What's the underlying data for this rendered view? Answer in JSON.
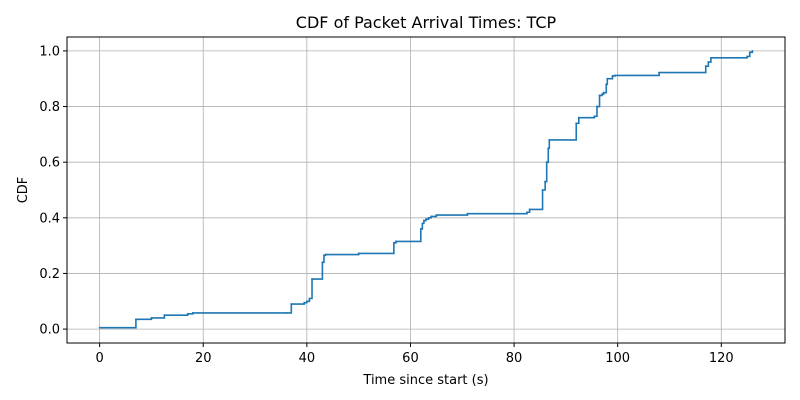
{
  "chart_data": {
    "type": "line",
    "title": "CDF of Packet Arrival Times: TCP",
    "xlabel": "Time since start (s)",
    "ylabel": "CDF",
    "xlim": [
      -6.3,
      132.3
    ],
    "ylim": [
      -0.05,
      1.05
    ],
    "xticks": [
      0,
      20,
      40,
      60,
      80,
      100,
      120
    ],
    "yticks": [
      0.0,
      0.2,
      0.4,
      0.6,
      0.8,
      1.0
    ],
    "xtick_labels": [
      "0",
      "20",
      "40",
      "60",
      "80",
      "100",
      "120"
    ],
    "ytick_labels": [
      "0.0",
      "0.2",
      "0.4",
      "0.6",
      "0.8",
      "1.0"
    ],
    "grid": true,
    "legend": "none",
    "series": [
      {
        "step": "post",
        "color": "#1f77b4",
        "x": [
          0,
          7,
          7.5,
          10,
          12.5,
          17,
          18,
          36,
          37,
          39.5,
          40,
          40.5,
          41,
          43,
          43.3,
          43.6,
          50,
          56.8,
          57.2,
          62,
          62.3,
          62.6,
          63,
          63.5,
          64,
          65,
          71,
          82.5,
          83,
          85.5,
          86,
          86.3,
          86.6,
          86.8,
          92,
          92.5,
          95.5,
          96,
          96.5,
          97,
          97.3,
          97.8,
          98,
          99,
          99.5,
          108,
          117,
          117.5,
          118,
          125,
          125.5,
          126
        ],
        "y": [
          0.005,
          0.035,
          0.035,
          0.04,
          0.05,
          0.055,
          0.058,
          0.058,
          0.09,
          0.095,
          0.1,
          0.11,
          0.18,
          0.24,
          0.265,
          0.268,
          0.272,
          0.31,
          0.315,
          0.36,
          0.38,
          0.39,
          0.395,
          0.4,
          0.405,
          0.41,
          0.415,
          0.42,
          0.43,
          0.5,
          0.53,
          0.6,
          0.65,
          0.68,
          0.74,
          0.76,
          0.765,
          0.8,
          0.84,
          0.845,
          0.85,
          0.88,
          0.9,
          0.91,
          0.912,
          0.922,
          0.945,
          0.96,
          0.975,
          0.98,
          0.995,
          1.0
        ]
      }
    ]
  }
}
